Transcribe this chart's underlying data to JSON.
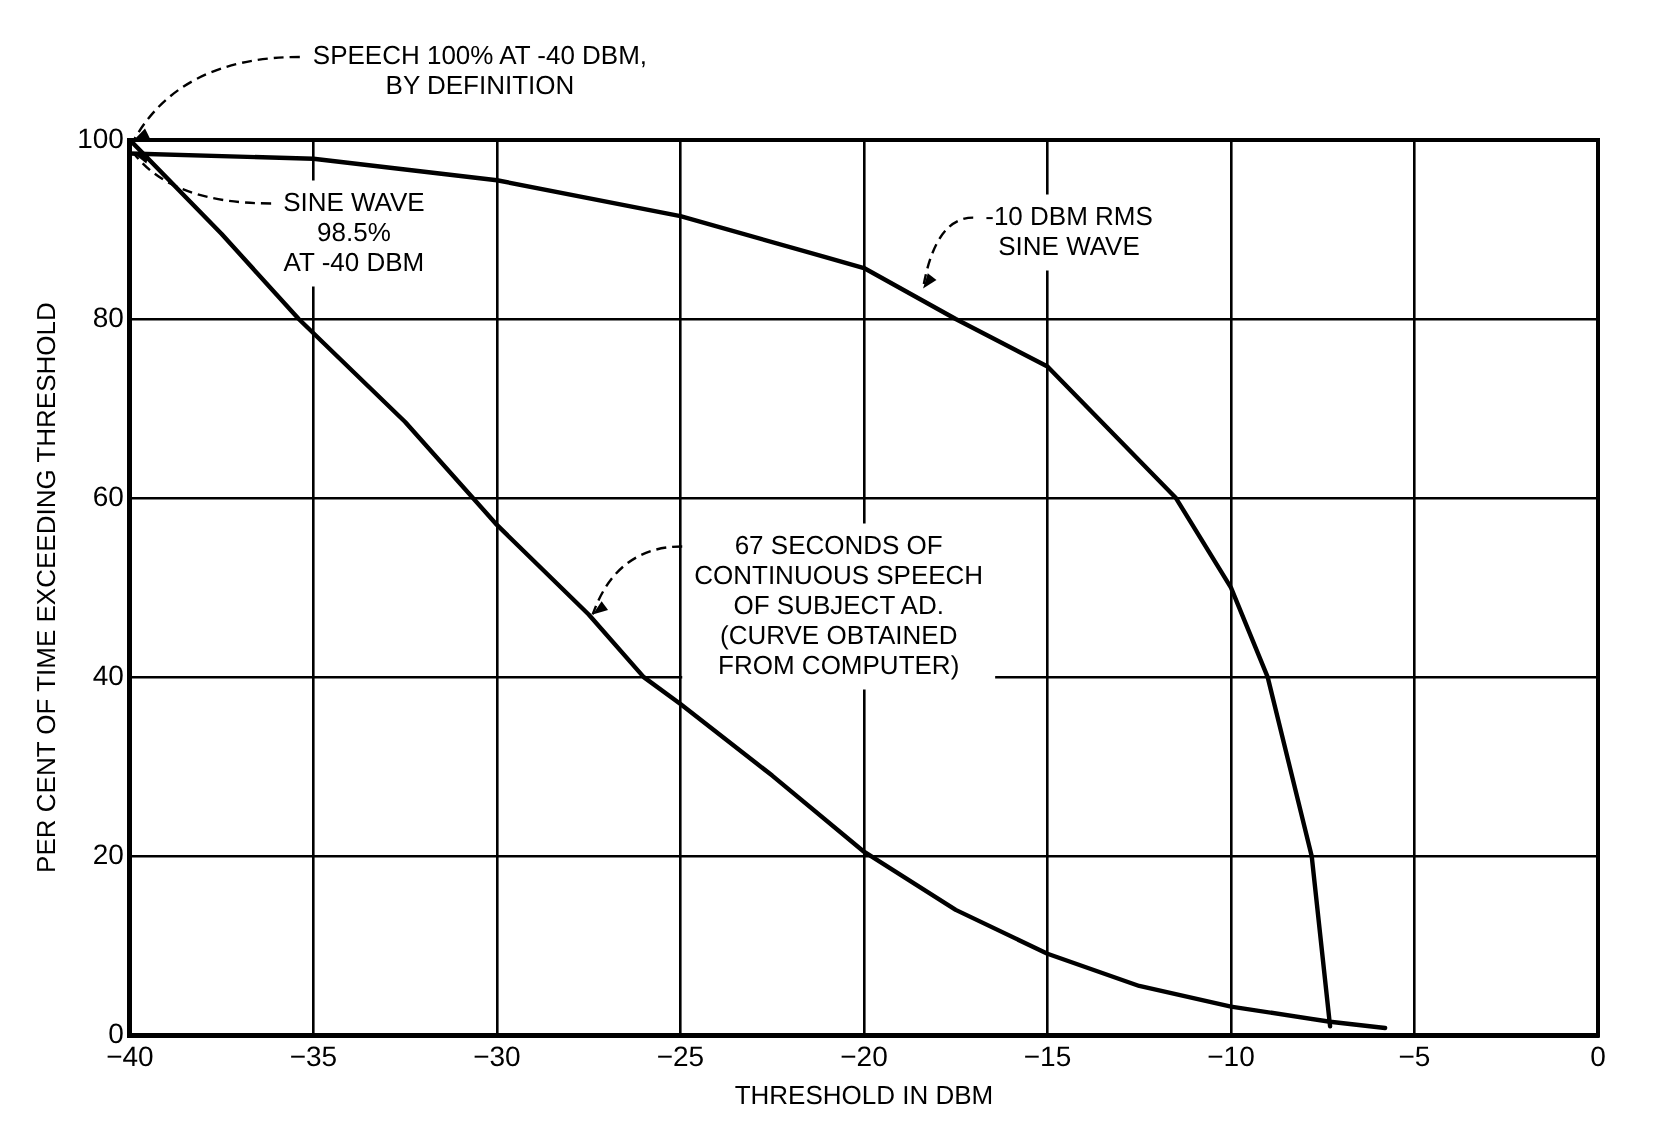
{
  "chart_data": {
    "type": "line",
    "xlabel": "THRESHOLD IN DBM",
    "ylabel": "PER CENT OF TIME EXCEEDING THRESHOLD",
    "xlim": [
      -40,
      0
    ],
    "xticks": [
      -40,
      -35,
      -30,
      -25,
      -20,
      -15,
      -10,
      -5,
      0
    ],
    "ylim": [
      0,
      100
    ],
    "yticks": [
      0,
      20,
      40,
      60,
      80,
      100
    ],
    "grid": true,
    "marker": "none",
    "line_style": "solid",
    "series": [
      {
        "color": "#000000",
        "x": [
          -40,
          -35,
          -30,
          -25,
          -20,
          -17.5,
          -15,
          -11.5,
          -10,
          -9,
          -7.8,
          -7.3
        ],
        "values": [
          98.5,
          97.9,
          95.5,
          91.5,
          85.7,
          80,
          74.7,
          60,
          50,
          40,
          20,
          1
        ]
      },
      {
        "color": "#000000",
        "x": [
          -40,
          -37.5,
          -35.4,
          -32.5,
          -30,
          -27.5,
          -26,
          -25,
          -22.5,
          -20,
          -17.5,
          -15,
          -12.5,
          -10,
          -7.3,
          -5.8
        ],
        "values": [
          100,
          89.5,
          80,
          68.5,
          57,
          47,
          40,
          37,
          29,
          20.5,
          14,
          9.1,
          5.5,
          3.2,
          1.5,
          0.8
        ]
      }
    ],
    "annotations": [
      {
        "text": "SPEECH 100% AT -40 DBM,\nBY DEFINITION",
        "x": -40,
        "y": 100
      },
      {
        "text": "SINE WAVE\n98.5%\nAT -40 DBM",
        "x": -40,
        "y": 98.5
      },
      {
        "text": "-10 DBM RMS\nSINE WAVE",
        "x": -18.5,
        "y": 83.4
      },
      {
        "text": "67 SECONDS OF\nCONTINUOUS SPEECH\nOF SUBJECT AD.\n(CURVE OBTAINED\nFROM COMPUTER)",
        "x": -27.5,
        "y": 47
      }
    ]
  }
}
